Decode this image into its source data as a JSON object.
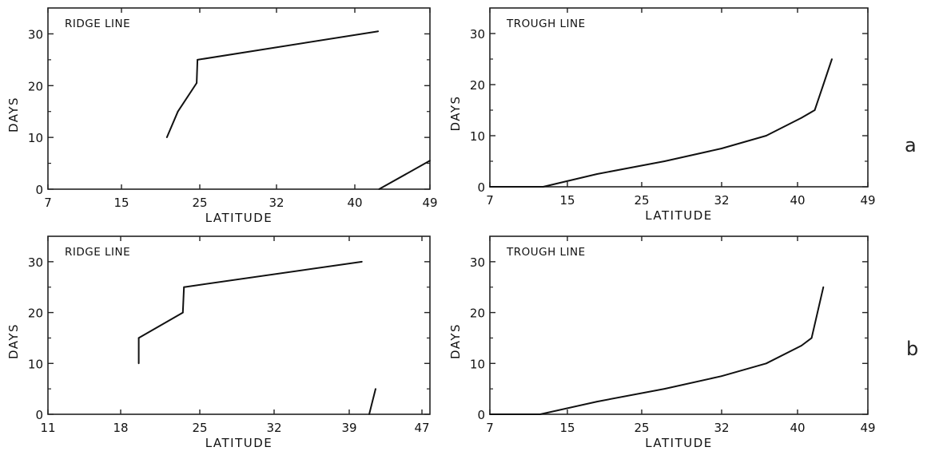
{
  "row_labels": [
    "a",
    "b"
  ],
  "chart_data": [
    {
      "type": "line",
      "title": "RIDGE LINE",
      "xlabel": "LATITUDE",
      "ylabel": "DAYS",
      "xticks": [
        "7",
        "15",
        "25",
        "32",
        "40",
        "49"
      ],
      "yticks": [
        "0",
        "10",
        "20",
        "30"
      ],
      "ylim": [
        0,
        35
      ],
      "grid": false,
      "series": [
        {
          "x": [
            20.8,
            22.2,
            24.6,
            24.7,
            42.8
          ],
          "y": [
            10,
            15,
            20.5,
            25,
            30.5
          ]
        },
        {
          "x": [
            42.9,
            49
          ],
          "y": [
            0,
            5.5
          ]
        }
      ]
    },
    {
      "type": "line",
      "title": "TROUGH LINE",
      "xlabel": "LATITUDE",
      "ylabel": "DAYS",
      "xticks": [
        "7",
        "15",
        "25",
        "32",
        "40",
        "49"
      ],
      "yticks": [
        "0",
        "10",
        "20",
        "30"
      ],
      "ylim": [
        0,
        35
      ],
      "grid": false,
      "series": [
        {
          "x": [
            7,
            12.5,
            19,
            27,
            32,
            36.7,
            40.5,
            42.2,
            43.3,
            44.4
          ],
          "y": [
            0,
            0,
            2.5,
            5,
            7.5,
            10,
            13.5,
            15,
            20,
            25
          ]
        }
      ]
    },
    {
      "type": "line",
      "title": "RIDGE LINE",
      "xlabel": "LATITUDE",
      "ylabel": "DAYS",
      "xticks": [
        "11",
        "18",
        "25",
        "32",
        "39",
        "47"
      ],
      "yticks": [
        "0",
        "10",
        "20",
        "30"
      ],
      "ylim": [
        0,
        35
      ],
      "grid": false,
      "series": [
        {
          "x": [
            19.6,
            19.6,
            23.5,
            23.6,
            40.4
          ],
          "y": [
            10,
            15,
            20,
            25,
            30
          ]
        },
        {
          "x": [
            41.2,
            41.9
          ],
          "y": [
            0,
            5
          ]
        }
      ]
    },
    {
      "type": "line",
      "title": "TROUGH LINE",
      "xlabel": "LATITUDE",
      "ylabel": "DAYS",
      "xticks": [
        "7",
        "15",
        "25",
        "32",
        "40",
        "49"
      ],
      "yticks": [
        "0",
        "10",
        "20",
        "30"
      ],
      "ylim": [
        0,
        35
      ],
      "grid": false,
      "series": [
        {
          "x": [
            7,
            12.2,
            19,
            27,
            32,
            36.7,
            40.5,
            41.8,
            43.3
          ],
          "y": [
            0,
            0,
            2.5,
            5,
            7.5,
            10,
            13.5,
            15,
            25
          ]
        }
      ]
    }
  ]
}
